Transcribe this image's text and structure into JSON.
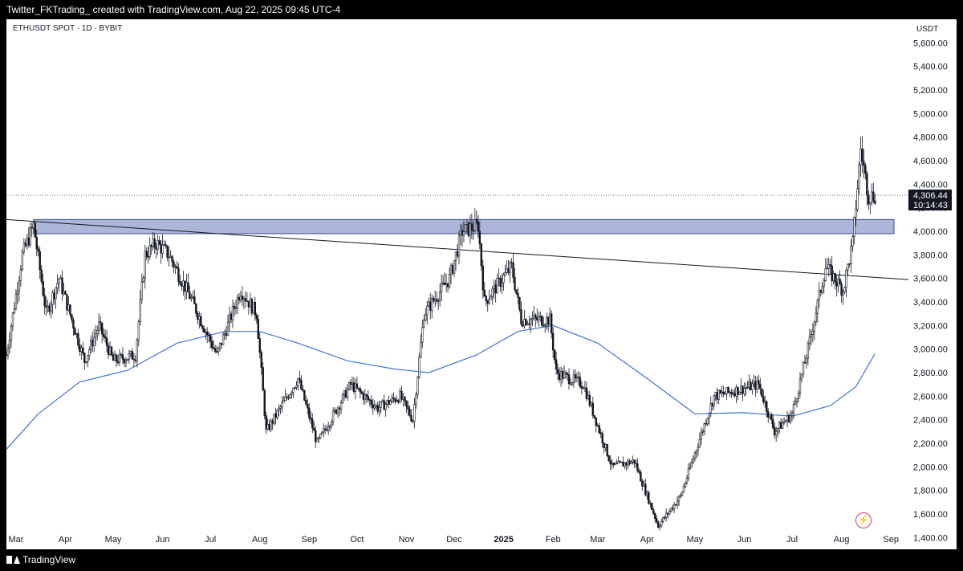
{
  "header": {
    "title": "Twitter_FKTrading_ created with TradingView.com, Aug 22, 2025 09:45 UTC-4"
  },
  "symbol": {
    "label": "ETHUSDT SPOT · 1D · BYBIT"
  },
  "footer": {
    "brand": "TradingView"
  },
  "price_badge": {
    "price": "4,306.44",
    "countdown": "10:14:43"
  },
  "chart_data": {
    "type": "candlestick",
    "unit": "USDT",
    "ylim": [
      1300,
      5800
    ],
    "y_ticks": [
      1400,
      1600,
      1800,
      2000,
      2200,
      2400,
      2600,
      2800,
      3000,
      3200,
      3400,
      3600,
      3800,
      4000,
      4200,
      4400,
      4600,
      4800,
      5000,
      5200,
      5400,
      5600
    ],
    "y_tick_labels": [
      "1,400.00",
      "1,600.00",
      "1,800.00",
      "2,000.00",
      "2,200.00",
      "2,400.00",
      "2,600.00",
      "2,800.00",
      "3,000.00",
      "3,200.00",
      "3,400.00",
      "3,600.00",
      "3,800.00",
      "4,000.00",
      "4,200.00",
      "4,400.00",
      "4,600.00",
      "4,800.00",
      "5,000.00",
      "5,200.00",
      "5,400.00",
      "5,600.00"
    ],
    "x_labels": [
      "Mar",
      "Apr",
      "May",
      "Jun",
      "Jul",
      "Aug",
      "Sep",
      "Oct",
      "Nov",
      "Dec",
      "2025",
      "Feb",
      "Mar",
      "Apr",
      "May",
      "Jun",
      "Jul",
      "Aug",
      "Sep"
    ],
    "x_label_positions": [
      "2024-03-01",
      "2024-04-01",
      "2024-05-01",
      "2024-06-01",
      "2024-07-01",
      "2024-08-01",
      "2024-09-01",
      "2024-10-01",
      "2024-11-01",
      "2024-12-01",
      "2025-01-01",
      "2025-02-01",
      "2025-03-01",
      "2025-04-01",
      "2025-05-01",
      "2025-06-01",
      "2025-07-01",
      "2025-08-01",
      "2025-09-01"
    ],
    "x_range": [
      "2024-02-24",
      "2025-09-12"
    ],
    "last_price": 4306.44,
    "price_path": [
      [
        "2024-02-24",
        2950
      ],
      [
        "2024-03-05",
        3800
      ],
      [
        "2024-03-12",
        4050
      ],
      [
        "2024-03-20",
        3300
      ],
      [
        "2024-03-28",
        3600
      ],
      [
        "2024-04-13",
        2900
      ],
      [
        "2024-04-22",
        3200
      ],
      [
        "2024-05-01",
        2900
      ],
      [
        "2024-05-15",
        2950
      ],
      [
        "2024-05-21",
        3800
      ],
      [
        "2024-05-28",
        3900
      ],
      [
        "2024-06-05",
        3800
      ],
      [
        "2024-06-18",
        3450
      ],
      [
        "2024-07-05",
        2950
      ],
      [
        "2024-07-20",
        3500
      ],
      [
        "2024-07-30",
        3300
      ],
      [
        "2024-08-05",
        2300
      ],
      [
        "2024-08-25",
        2750
      ],
      [
        "2024-09-06",
        2200
      ],
      [
        "2024-09-27",
        2700
      ],
      [
        "2024-10-14",
        2500
      ],
      [
        "2024-10-28",
        2600
      ],
      [
        "2024-11-05",
        2400
      ],
      [
        "2024-11-12",
        3300
      ],
      [
        "2024-11-28",
        3600
      ],
      [
        "2024-12-06",
        4000
      ],
      [
        "2024-12-16",
        4050
      ],
      [
        "2024-12-20",
        3400
      ],
      [
        "2025-01-06",
        3700
      ],
      [
        "2025-01-12",
        3250
      ],
      [
        "2025-01-30",
        3250
      ],
      [
        "2025-02-03",
        2800
      ],
      [
        "2025-02-20",
        2700
      ],
      [
        "2025-03-10",
        2000
      ],
      [
        "2025-03-24",
        2050
      ],
      [
        "2025-04-08",
        1500
      ],
      [
        "2025-04-22",
        1750
      ],
      [
        "2025-05-08",
        2400
      ],
      [
        "2025-05-13",
        2600
      ],
      [
        "2025-06-10",
        2700
      ],
      [
        "2025-06-20",
        2300
      ],
      [
        "2025-07-01",
        2450
      ],
      [
        "2025-07-11",
        3000
      ],
      [
        "2025-07-22",
        3700
      ],
      [
        "2025-08-02",
        3500
      ],
      [
        "2025-08-08",
        3900
      ],
      [
        "2025-08-13",
        4700
      ],
      [
        "2025-08-18",
        4300
      ],
      [
        "2025-08-22",
        4306
      ]
    ],
    "ma_path": [
      [
        "2024-02-24",
        2150
      ],
      [
        "2024-03-15",
        2450
      ],
      [
        "2024-04-10",
        2720
      ],
      [
        "2024-05-10",
        2820
      ],
      [
        "2024-06-10",
        3050
      ],
      [
        "2024-07-10",
        3150
      ],
      [
        "2024-08-01",
        3150
      ],
      [
        "2024-08-25",
        3050
      ],
      [
        "2024-09-25",
        2900
      ],
      [
        "2024-10-25",
        2830
      ],
      [
        "2024-11-15",
        2800
      ],
      [
        "2024-12-15",
        2950
      ],
      [
        "2025-01-10",
        3150
      ],
      [
        "2025-02-01",
        3200
      ],
      [
        "2025-03-01",
        3050
      ],
      [
        "2025-04-01",
        2750
      ],
      [
        "2025-05-01",
        2450
      ],
      [
        "2025-06-01",
        2460
      ],
      [
        "2025-07-01",
        2430
      ],
      [
        "2025-07-25",
        2520
      ],
      [
        "2025-08-10",
        2680
      ],
      [
        "2025-08-22",
        2960
      ]
    ],
    "trendline": [
      [
        "2024-02-24",
        4100
      ],
      [
        "2025-09-12",
        3590
      ]
    ],
    "resistance_zone": {
      "from": 3980,
      "to": 4100
    }
  }
}
